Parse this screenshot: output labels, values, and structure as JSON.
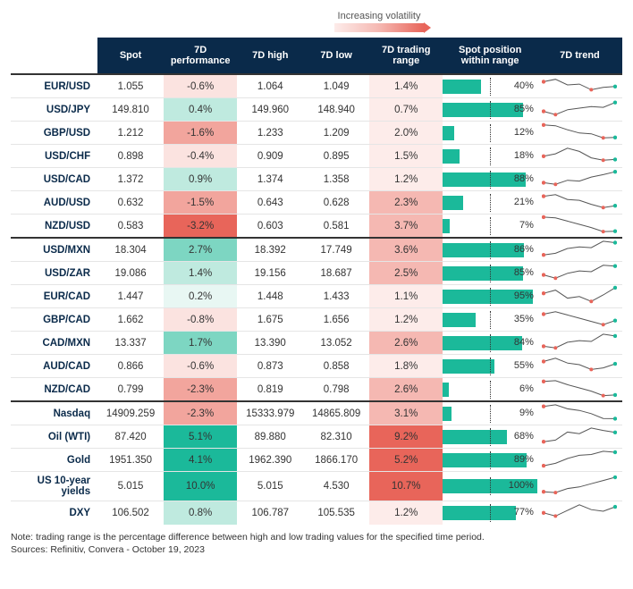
{
  "legend": {
    "label": "Increasing volatility"
  },
  "colors": {
    "header_bg": "#0a2a4a",
    "header_text": "#ffffff",
    "row_label": "#0a2a4a",
    "bar_fill": "#1bb99a",
    "perf_scale": {
      "neg_max": "#e8655a",
      "neg_mid": "#f2a59d",
      "neg_light": "#fbe3e0",
      "neutral": "#e8f7f3",
      "pos_light": "#bfeadf",
      "pos_mid": "#7dd6c2",
      "pos_max": "#1bb99a"
    },
    "range_scale": {
      "low": "#fdecea",
      "mid": "#f5b8b2",
      "high": "#e8655a"
    }
  },
  "columns": [
    {
      "key": "name",
      "label": "",
      "width": 92
    },
    {
      "key": "spot",
      "label": "Spot",
      "width": 70
    },
    {
      "key": "perf",
      "label": "7D performance",
      "width": 78
    },
    {
      "key": "high",
      "label": "7D high",
      "width": 70
    },
    {
      "key": "low",
      "label": "7D low",
      "width": 70
    },
    {
      "key": "range",
      "label": "7D trading range",
      "width": 78
    },
    {
      "key": "pos",
      "label": "Spot position within range",
      "width": 100
    },
    {
      "key": "trend",
      "label": "7D trend",
      "width": 90
    }
  ],
  "groups": [
    {
      "rows": [
        {
          "name": "EUR/USD",
          "spot": "1.055",
          "perf": -0.6,
          "high": "1.064",
          "low": "1.049",
          "range": 1.4,
          "pos": 40,
          "spark": [
            0.7,
            0.85,
            0.5,
            0.55,
            0.2,
            0.35,
            0.4
          ]
        },
        {
          "name": "USD/JPY",
          "spot": "149.810",
          "perf": 0.4,
          "high": "149.960",
          "low": "148.940",
          "range": 0.7,
          "pos": 85,
          "spark": [
            0.3,
            0.1,
            0.4,
            0.5,
            0.6,
            0.55,
            0.85
          ]
        },
        {
          "name": "GBP/USD",
          "spot": "1.212",
          "perf": -1.6,
          "high": "1.233",
          "low": "1.209",
          "range": 2.0,
          "pos": 12,
          "spark": [
            0.9,
            0.85,
            0.6,
            0.4,
            0.35,
            0.1,
            0.12
          ]
        },
        {
          "name": "USD/CHF",
          "spot": "0.898",
          "perf": -0.4,
          "high": "0.909",
          "low": "0.895",
          "range": 1.5,
          "pos": 18,
          "spark": [
            0.4,
            0.55,
            0.9,
            0.7,
            0.3,
            0.15,
            0.2
          ]
        },
        {
          "name": "USD/CAD",
          "spot": "1.372",
          "perf": 0.9,
          "high": "1.374",
          "low": "1.358",
          "range": 1.2,
          "pos": 88,
          "spark": [
            0.2,
            0.1,
            0.35,
            0.3,
            0.55,
            0.7,
            0.88
          ]
        },
        {
          "name": "AUD/USD",
          "spot": "0.632",
          "perf": -1.5,
          "high": "0.643",
          "low": "0.628",
          "range": 2.3,
          "pos": 21,
          "spark": [
            0.8,
            0.9,
            0.6,
            0.55,
            0.3,
            0.1,
            0.21
          ]
        },
        {
          "name": "NZD/USD",
          "spot": "0.583",
          "perf": -3.2,
          "high": "0.603",
          "low": "0.581",
          "range": 3.7,
          "pos": 7,
          "spark": [
            0.95,
            0.9,
            0.7,
            0.5,
            0.3,
            0.05,
            0.07
          ]
        }
      ]
    },
    {
      "rows": [
        {
          "name": "USD/MXN",
          "spot": "18.304",
          "perf": 2.7,
          "high": "18.392",
          "low": "17.749",
          "range": 3.6,
          "pos": 86,
          "spark": [
            0.1,
            0.2,
            0.5,
            0.6,
            0.55,
            0.95,
            0.86
          ]
        },
        {
          "name": "USD/ZAR",
          "spot": "19.086",
          "perf": 1.4,
          "high": "19.156",
          "low": "18.687",
          "range": 2.5,
          "pos": 85,
          "spark": [
            0.3,
            0.1,
            0.4,
            0.55,
            0.5,
            0.9,
            0.85
          ]
        },
        {
          "name": "EUR/CAD",
          "spot": "1.447",
          "perf": 0.2,
          "high": "1.448",
          "low": "1.433",
          "range": 1.1,
          "pos": 95,
          "spark": [
            0.6,
            0.8,
            0.3,
            0.4,
            0.1,
            0.5,
            0.95
          ]
        },
        {
          "name": "GBP/CAD",
          "spot": "1.662",
          "perf": -0.8,
          "high": "1.675",
          "low": "1.656",
          "range": 1.2,
          "pos": 35,
          "spark": [
            0.75,
            0.9,
            0.7,
            0.5,
            0.3,
            0.1,
            0.35
          ]
        },
        {
          "name": "CAD/MXN",
          "spot": "13.337",
          "perf": 1.7,
          "high": "13.390",
          "low": "13.052",
          "range": 2.6,
          "pos": 84,
          "spark": [
            0.2,
            0.1,
            0.45,
            0.55,
            0.5,
            0.95,
            0.84
          ]
        },
        {
          "name": "AUD/CAD",
          "spot": "0.866",
          "perf": -0.6,
          "high": "0.873",
          "low": "0.858",
          "range": 1.8,
          "pos": 55,
          "spark": [
            0.7,
            0.9,
            0.6,
            0.5,
            0.2,
            0.3,
            0.55
          ]
        },
        {
          "name": "NZD/CAD",
          "spot": "0.799",
          "perf": -2.3,
          "high": "0.819",
          "low": "0.798",
          "range": 2.6,
          "pos": 6,
          "spark": [
            0.9,
            0.95,
            0.7,
            0.5,
            0.3,
            0.02,
            0.06
          ]
        }
      ]
    },
    {
      "rows": [
        {
          "name": "Nasdaq",
          "spot": "14909.259",
          "perf": -2.3,
          "high": "15333.979",
          "low": "14865.809",
          "range": 3.1,
          "pos": 9,
          "spark": [
            0.85,
            0.95,
            0.7,
            0.6,
            0.4,
            0.1,
            0.09
          ]
        },
        {
          "name": "Oil (WTI)",
          "spot": "87.420",
          "perf": 5.1,
          "high": "89.880",
          "low": "82.310",
          "range": 9.2,
          "pos": 68,
          "spark": [
            0.1,
            0.2,
            0.7,
            0.6,
            0.95,
            0.8,
            0.68
          ]
        },
        {
          "name": "Gold",
          "spot": "1951.350",
          "perf": 4.1,
          "high": "1962.390",
          "low": "1866.170",
          "range": 5.2,
          "pos": 89,
          "spark": [
            0.05,
            0.2,
            0.5,
            0.7,
            0.75,
            0.95,
            0.89
          ]
        },
        {
          "name": "US 10-year yields",
          "spot": "5.015",
          "perf": 10.0,
          "high": "5.015",
          "low": "4.530",
          "range": 10.7,
          "pos": 100,
          "spark": [
            0.1,
            0.05,
            0.3,
            0.4,
            0.6,
            0.8,
            1.0
          ]
        },
        {
          "name": "DXY",
          "spot": "106.502",
          "perf": 0.8,
          "high": "106.787",
          "low": "105.535",
          "range": 1.2,
          "pos": 77,
          "spark": [
            0.4,
            0.2,
            0.55,
            0.9,
            0.6,
            0.5,
            0.77
          ]
        }
      ]
    }
  ],
  "perf_min": -3.5,
  "perf_max": 10.0,
  "range_min": 0.7,
  "range_max": 10.7,
  "footnote": "Note: trading range is the percentage difference between high and low trading values for the specified time period.",
  "sources": "Sources: Refinitiv, Convera - October 19, 2023"
}
